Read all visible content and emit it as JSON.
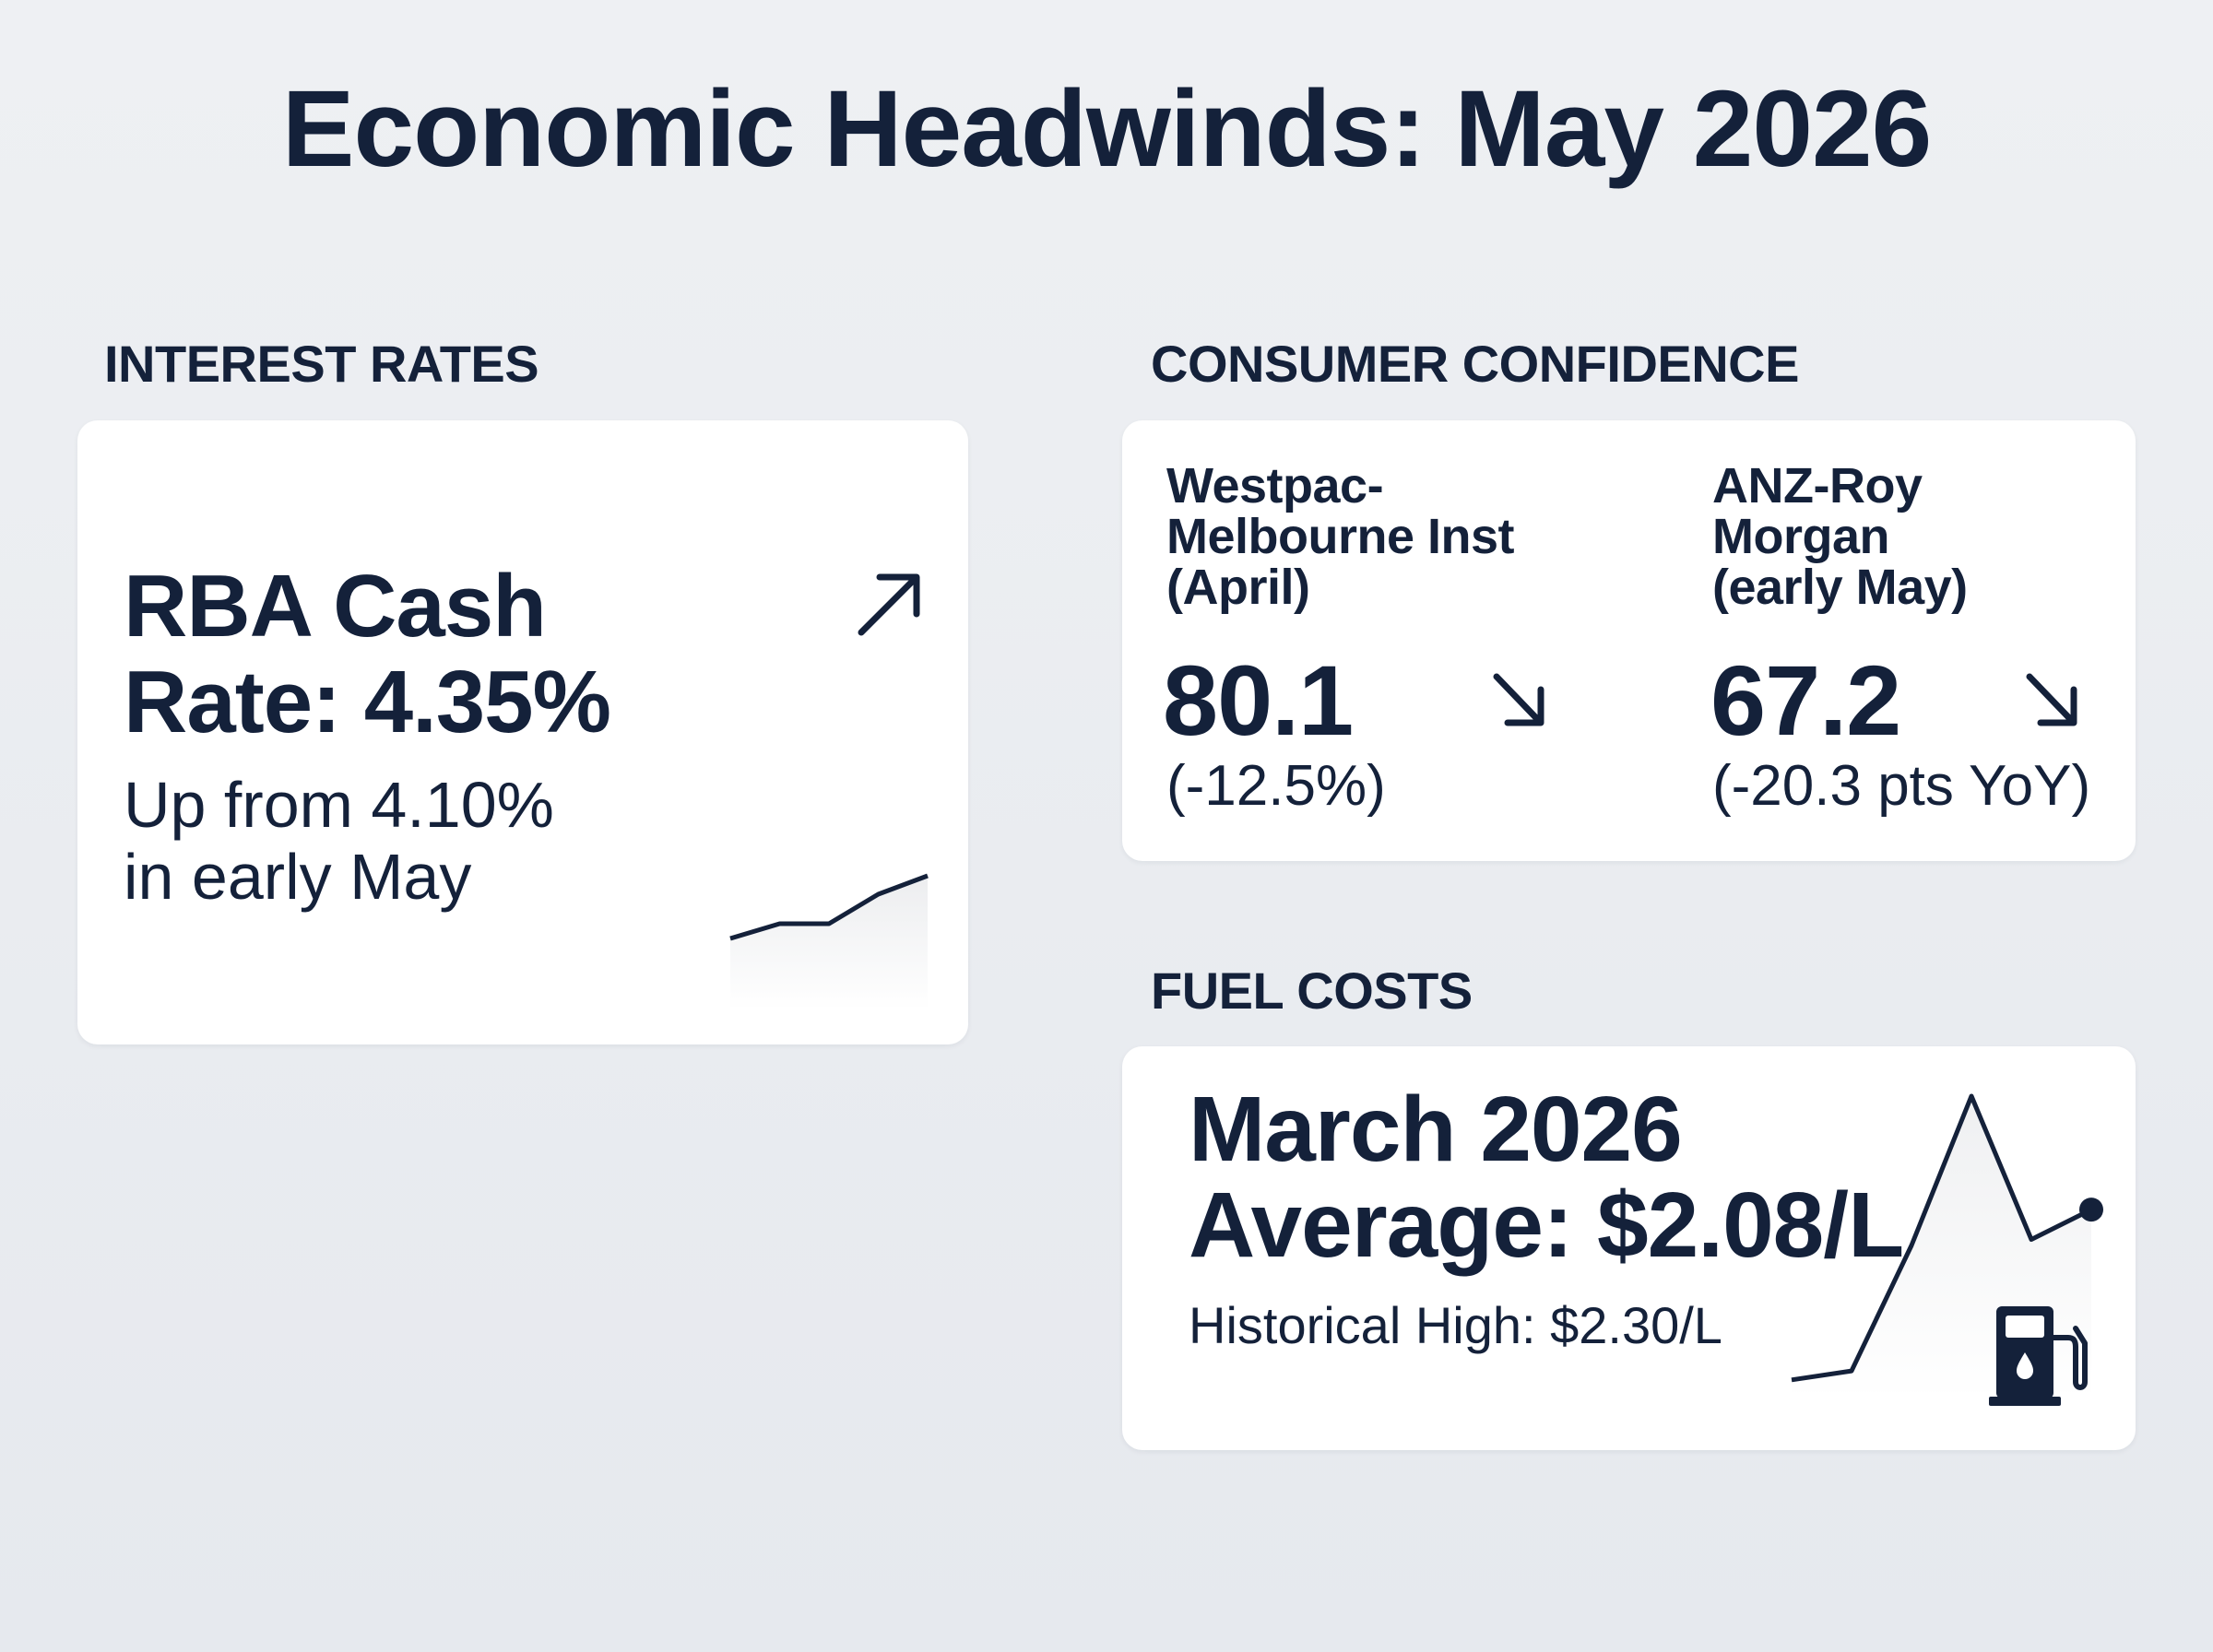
{
  "title": "Economic Headwinds: May 2026",
  "interest_rates": {
    "section_label": "INTEREST RATES",
    "headline_line1": "RBA Cash",
    "headline_line2": "Rate: 4.35%",
    "sub_line1": "Up from 4.10%",
    "sub_line2": "in early May",
    "trend_icon": "arrow-up-right-icon",
    "sparkline": [
      0,
      0.2,
      0.2,
      0.6,
      0.85
    ]
  },
  "consumer_confidence": {
    "section_label": "CONSUMER CONFIDENCE",
    "westpac": {
      "label_line1": "Westpac-",
      "label_line2": "Melbourne Inst",
      "label_line3": "(April)",
      "value": "80.1",
      "change": "(-12.5%)",
      "trend_icon": "arrow-down-right-icon"
    },
    "anz": {
      "label_line1": "ANZ-Roy",
      "label_line2": "Morgan",
      "label_line3": "(early May)",
      "value": "67.2",
      "change": "(-20.3 pts YoY)",
      "trend_icon": "arrow-down-right-icon"
    }
  },
  "fuel_costs": {
    "section_label": "FUEL COSTS",
    "headline_line1": "March 2026",
    "headline_line2": "Average: $2.08/L",
    "sub": "Historical High: $2.30/L",
    "icon": "fuel-pump-icon",
    "sparkline": [
      0.05,
      0.08,
      0.5,
      1.0,
      0.52,
      0.62
    ]
  },
  "colors": {
    "ink": "#14213a",
    "card": "#ffffff",
    "background": "#e9ecf0"
  }
}
